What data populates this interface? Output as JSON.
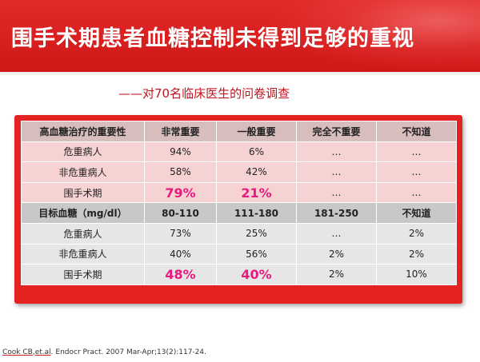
{
  "title": "围手术期患者血糖控制未得到足够的重视",
  "subtitle": "——对70名临床医生的问卷调查",
  "table": {
    "header1": [
      "高血糖治疗的重要性",
      "非常重要",
      "一般重要",
      "完全不重要",
      "不知道"
    ],
    "rows1": [
      [
        "危重病人",
        "94%",
        "6%",
        "…",
        "…"
      ],
      [
        "非危重病人",
        "58%",
        "42%",
        "…",
        "…"
      ],
      [
        "围手术期",
        "79%",
        "21%",
        "…",
        "…"
      ]
    ],
    "header2": [
      "目标血糖（mg/dl）",
      "80-110",
      "111-180",
      "181-250",
      "不知道"
    ],
    "rows2": [
      [
        "危重病人",
        "73%",
        "25%",
        "…",
        "2%"
      ],
      [
        "非危重病人",
        "40%",
        "56%",
        "2%",
        "2%"
      ],
      [
        "围手术期",
        "48%",
        "40%",
        "2%",
        "10%"
      ]
    ]
  },
  "citation": {
    "author": "Cook CB",
    "etal": "et.al",
    "rest": "Endocr Pract. 2007 Mar-Apr;13(2):117-24."
  },
  "colors": {
    "banner": "#d81c1c",
    "frame": "#e52222",
    "highlight": "#e8197f",
    "subtitle": "#c0141c"
  }
}
